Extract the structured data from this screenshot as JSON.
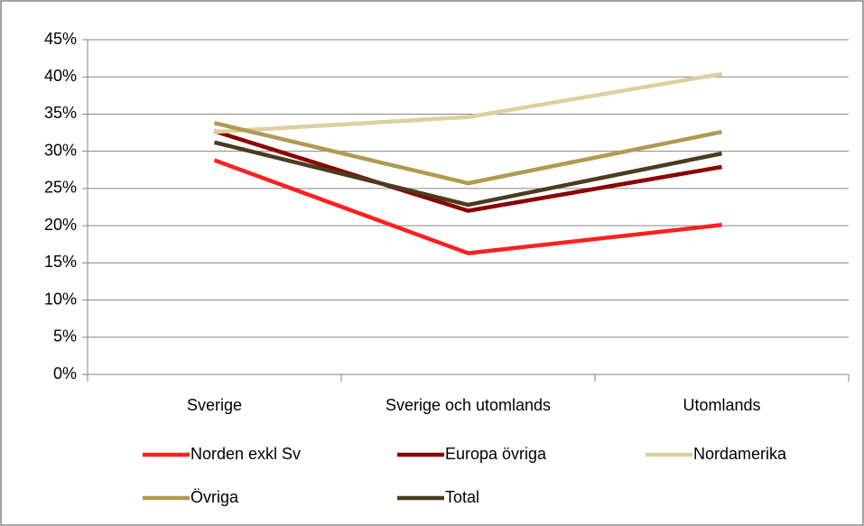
{
  "chart_data": {
    "type": "line",
    "categories": [
      "Sverige",
      "Sverige och utomlands",
      "Utomlands"
    ],
    "series": [
      {
        "name": "Norden exkl Sv",
        "color": "#ff2020",
        "values": [
          28.8,
          16.3,
          20.1
        ]
      },
      {
        "name": "Europa övriga",
        "color": "#8b0000",
        "values": [
          32.7,
          22.0,
          27.9
        ]
      },
      {
        "name": "Nordamerika",
        "color": "#ddd0a0",
        "values": [
          32.6,
          34.6,
          40.4
        ]
      },
      {
        "name": "Övriga",
        "color": "#b09a50",
        "values": [
          33.8,
          25.7,
          32.6
        ]
      },
      {
        "name": "Total",
        "color": "#4a3c20",
        "values": [
          31.2,
          22.8,
          29.7
        ]
      }
    ],
    "ylim": [
      0,
      45
    ],
    "yticks": [
      {
        "value": 0,
        "label": "0%"
      },
      {
        "value": 5,
        "label": "5%"
      },
      {
        "value": 10,
        "label": "10%"
      },
      {
        "value": 15,
        "label": "15%"
      },
      {
        "value": 20,
        "label": "20%"
      },
      {
        "value": 25,
        "label": "25%"
      },
      {
        "value": 30,
        "label": "30%"
      },
      {
        "value": 35,
        "label": "35%"
      },
      {
        "value": 40,
        "label": "40%"
      },
      {
        "value": 45,
        "label": "45%"
      }
    ],
    "grid": true,
    "legend": "bottom"
  }
}
